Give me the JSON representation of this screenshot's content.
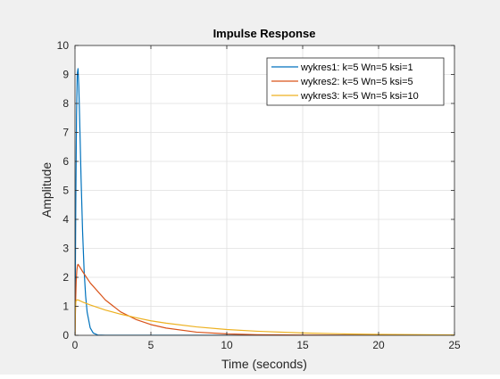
{
  "chart_data": {
    "type": "line",
    "title": "Impulse Response",
    "xlabel": "Time (seconds)",
    "ylabel": "Amplitude",
    "xlim": [
      0,
      25
    ],
    "ylim": [
      0,
      10
    ],
    "xticks": [
      0,
      5,
      10,
      15,
      20,
      25
    ],
    "yticks": [
      0,
      1,
      2,
      3,
      4,
      5,
      6,
      7,
      8,
      9,
      10
    ],
    "grid": true,
    "legend_position": "top-right",
    "series": [
      {
        "name": "wykres1: k=5 Wn=5 ksi=1",
        "color": "#0072bd",
        "points": [
          [
            0,
            0
          ],
          [
            0.05,
            4.41
          ],
          [
            0.1,
            7.58
          ],
          [
            0.15,
            9.03
          ],
          [
            0.2,
            9.2
          ],
          [
            0.25,
            8.6
          ],
          [
            0.3,
            7.59
          ],
          [
            0.4,
            5.41
          ],
          [
            0.5,
            3.58
          ],
          [
            0.6,
            2.24
          ],
          [
            0.7,
            1.36
          ],
          [
            0.8,
            0.8
          ],
          [
            1.0,
            0.26
          ],
          [
            1.2,
            0.08
          ],
          [
            1.5,
            0.01
          ],
          [
            2.0,
            0
          ],
          [
            25,
            0
          ]
        ]
      },
      {
        "name": "wykres2: k=5 Wn=5 ksi=5",
        "color": "#d95319",
        "points": [
          [
            0,
            0
          ],
          [
            0.04,
            1.14
          ],
          [
            0.08,
            1.88
          ],
          [
            0.12,
            2.23
          ],
          [
            0.16,
            2.4
          ],
          [
            0.2,
            2.45
          ],
          [
            0.3,
            2.37
          ],
          [
            0.5,
            2.2
          ],
          [
            1,
            1.81
          ],
          [
            2,
            1.22
          ],
          [
            3,
            0.81
          ],
          [
            4,
            0.55
          ],
          [
            5,
            0.37
          ],
          [
            6,
            0.25
          ],
          [
            8,
            0.11
          ],
          [
            10,
            0.05
          ],
          [
            12,
            0.02
          ],
          [
            15,
            0.007
          ],
          [
            20,
            0.001
          ],
          [
            25,
            0
          ]
        ]
      },
      {
        "name": "wykres3: k=5 Wn=5 ksi=10",
        "color": "#edb120",
        "points": [
          [
            0,
            0
          ],
          [
            0.02,
            0.78
          ],
          [
            0.04,
            1.06
          ],
          [
            0.06,
            1.17
          ],
          [
            0.1,
            1.22
          ],
          [
            0.2,
            1.22
          ],
          [
            0.5,
            1.15
          ],
          [
            1,
            1.05
          ],
          [
            2,
            0.87
          ],
          [
            3,
            0.73
          ],
          [
            4,
            0.61
          ],
          [
            5,
            0.5
          ],
          [
            6,
            0.42
          ],
          [
            8,
            0.29
          ],
          [
            10,
            0.2
          ],
          [
            12,
            0.14
          ],
          [
            15,
            0.08
          ],
          [
            18,
            0.046
          ],
          [
            20,
            0.032
          ],
          [
            25,
            0.013
          ]
        ]
      }
    ]
  }
}
